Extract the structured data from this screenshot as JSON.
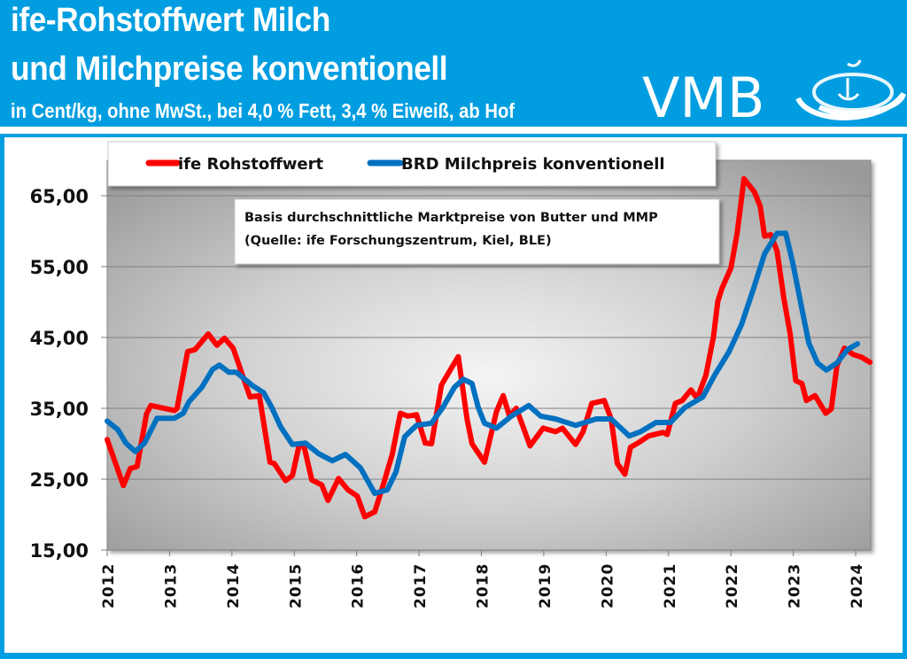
{
  "header": {
    "title_line1": "ife-Rohstoffwert Milch",
    "title_line2": "und Milchpreise konventionell",
    "subtitle": "in Cent/kg, ohne MwSt., bei 4,0 % Fett, 3,4 % Eiweiß, ab Hof",
    "logo_text": "VMB"
  },
  "colors": {
    "header_bg": "#009ee0",
    "red_series": "#ff0000",
    "blue_series": "#0070c0"
  },
  "chart_data": {
    "type": "line",
    "title": "",
    "xlabel": "",
    "ylabel": "",
    "xlim": [
      2012,
      2024.25
    ],
    "ylim": [
      15,
      65
    ],
    "y_ticks": [
      "15,00",
      "25,00",
      "35,00",
      "45,00",
      "55,00",
      "65,00"
    ],
    "y_tick_values": [
      15,
      25,
      35,
      45,
      55,
      65
    ],
    "x_ticks": [
      "2012",
      "2013",
      "2014",
      "2015",
      "2016",
      "2017",
      "2018",
      "2019",
      "2020",
      "2021",
      "2022",
      "2023",
      "2024"
    ],
    "grid": "horizontal",
    "legend_placement": "top",
    "annotation": {
      "line1": "Basis durchschnittliche Marktpreise von Butter und MMP",
      "line2": "(Quelle: ife Forschungszentrum, Kiel, BLE)"
    },
    "series": [
      {
        "name": "ife Rohstoffwert",
        "color": "#ff0000",
        "x": [
          2012.0,
          2012.26,
          2012.37,
          2012.48,
          2012.63,
          2012.7,
          2013.08,
          2013.12,
          2013.29,
          2013.41,
          2013.62,
          2013.76,
          2013.88,
          2014.02,
          2014.29,
          2014.44,
          2014.61,
          2014.68,
          2014.86,
          2014.97,
          2015.07,
          2015.15,
          2015.28,
          2015.44,
          2015.54,
          2015.71,
          2015.86,
          2016.01,
          2016.13,
          2016.29,
          2016.43,
          2016.57,
          2016.7,
          2016.82,
          2016.96,
          2017.1,
          2017.2,
          2017.36,
          2017.5,
          2017.63,
          2017.77,
          2017.85,
          2018.05,
          2018.24,
          2018.35,
          2018.45,
          2018.56,
          2018.78,
          2018.99,
          2019.19,
          2019.3,
          2019.51,
          2019.63,
          2019.77,
          2019.97,
          2020.08,
          2020.18,
          2020.3,
          2020.39,
          2020.51,
          2020.68,
          2020.91,
          2020.98,
          2021.11,
          2021.22,
          2021.36,
          2021.46,
          2021.6,
          2021.72,
          2021.79,
          2021.86,
          2022.0,
          2022.1,
          2022.21,
          2022.38,
          2022.47,
          2022.54,
          2022.64,
          2022.74,
          2022.85,
          2022.95,
          2023.04,
          2023.14,
          2023.21,
          2023.35,
          2023.52,
          2023.61,
          2023.7,
          2023.82,
          2023.96,
          2024.1,
          2024.23
        ],
        "y": [
          30.6,
          24.1,
          26.5,
          26.8,
          34.2,
          35.4,
          34.7,
          35.0,
          43.0,
          43.3,
          45.5,
          43.9,
          44.9,
          43.5,
          36.6,
          36.8,
          27.4,
          27.2,
          24.8,
          25.5,
          29.5,
          29.9,
          24.9,
          24.2,
          22.0,
          25.1,
          23.5,
          22.6,
          19.7,
          20.4,
          24.3,
          28.5,
          34.3,
          33.9,
          34.1,
          30.1,
          30.0,
          38.3,
          40.4,
          42.3,
          33.5,
          30.0,
          27.4,
          34.5,
          36.8,
          33.9,
          35.0,
          29.7,
          32.2,
          31.7,
          32.2,
          29.9,
          31.7,
          35.7,
          36.1,
          33.5,
          27.2,
          25.7,
          29.5,
          30.1,
          31.1,
          31.6,
          31.3,
          35.7,
          36.1,
          37.6,
          36.4,
          39.7,
          45.1,
          50.1,
          52.0,
          54.8,
          59.7,
          67.4,
          65.5,
          63.5,
          59.3,
          59.5,
          57.2,
          50.5,
          45.5,
          38.9,
          38.5,
          36.1,
          36.8,
          34.3,
          34.9,
          41.0,
          43.5,
          42.6,
          42.2,
          41.5
        ]
      },
      {
        "name": "BRD Milchpreis konventionell",
        "color": "#0070c0",
        "x": [
          2012.0,
          2012.17,
          2012.3,
          2012.45,
          2012.6,
          2012.8,
          2013.08,
          2013.22,
          2013.31,
          2013.52,
          2013.69,
          2013.8,
          2013.95,
          2014.07,
          2014.33,
          2014.51,
          2014.64,
          2014.78,
          2014.97,
          2015.18,
          2015.39,
          2015.61,
          2015.82,
          2016.06,
          2016.29,
          2016.49,
          2016.63,
          2016.77,
          2016.96,
          2017.2,
          2017.38,
          2017.57,
          2017.71,
          2017.85,
          2017.95,
          2018.05,
          2018.24,
          2018.48,
          2018.76,
          2018.95,
          2019.19,
          2019.51,
          2019.84,
          2020.08,
          2020.37,
          2020.55,
          2020.8,
          2021.03,
          2021.26,
          2021.55,
          2021.74,
          2021.97,
          2022.17,
          2022.36,
          2022.54,
          2022.74,
          2022.88,
          2022.99,
          2023.14,
          2023.25,
          2023.39,
          2023.53,
          2023.7,
          2023.87,
          2024.03
        ],
        "y": [
          33.2,
          32.0,
          30.1,
          28.9,
          30.1,
          33.6,
          33.6,
          34.3,
          35.9,
          38.0,
          40.5,
          41.1,
          40.1,
          40.1,
          38.2,
          37.2,
          35.1,
          32.4,
          29.9,
          30.1,
          28.6,
          27.6,
          28.5,
          26.6,
          23.0,
          23.5,
          26.0,
          31.0,
          32.6,
          32.9,
          35.1,
          38.0,
          39.1,
          38.5,
          35.1,
          32.9,
          32.2,
          33.9,
          35.4,
          33.9,
          33.5,
          32.6,
          33.5,
          33.5,
          31.1,
          31.7,
          33.0,
          33.0,
          35.1,
          36.6,
          39.7,
          43.0,
          46.8,
          51.8,
          56.8,
          59.7,
          59.7,
          55.6,
          49.0,
          44.2,
          41.4,
          40.4,
          41.4,
          43.3,
          44.1
        ]
      }
    ]
  }
}
